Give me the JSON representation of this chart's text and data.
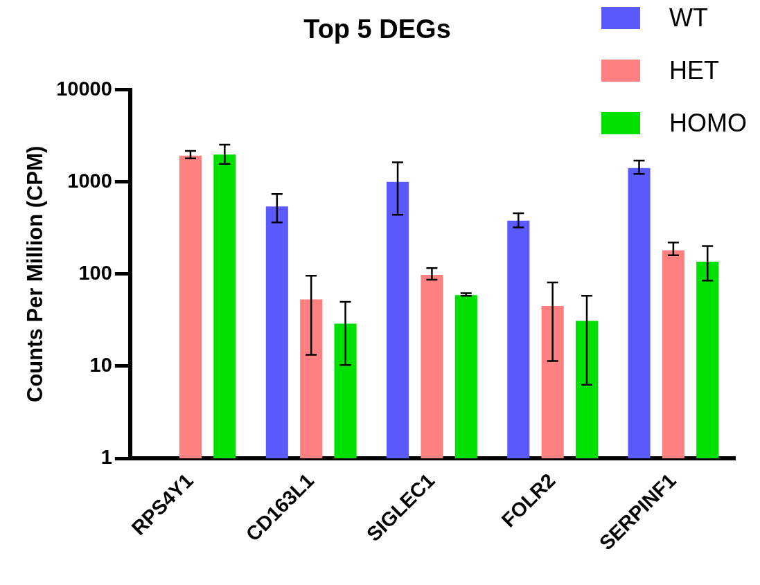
{
  "chart_data": {
    "type": "bar",
    "title": "Top 5 DEGs",
    "ylabel": "Counts Per Million (CPM)",
    "categories": [
      "RPS4Y1",
      "CD163L1",
      "SIGLEC1",
      "FOLR2",
      "SERPINF1"
    ],
    "series": [
      {
        "name": "WT",
        "color": "#5a5aff",
        "values": [
          null,
          540,
          1000,
          380,
          1410
        ],
        "errors": [
          null,
          [
            364,
            740
          ],
          [
            440,
            1630
          ],
          [
            320,
            458
          ],
          [
            1220,
            1700
          ]
        ]
      },
      {
        "name": "HET",
        "color": "#ff8080",
        "values": [
          1930,
          53,
          98,
          45,
          181
        ],
        "errors": [
          [
            1800,
            2170
          ],
          [
            13.3,
            96
          ],
          [
            87,
            116
          ],
          [
            11.4,
            81
          ],
          [
            160,
            220
          ]
        ]
      },
      {
        "name": "HOMO",
        "color": "#00e000",
        "values": [
          1980,
          29,
          59,
          31,
          136
        ],
        "errors": [
          [
            1570,
            2530
          ],
          [
            10.3,
            50
          ],
          [
            58,
            62
          ],
          [
            6.3,
            58
          ],
          [
            85,
            201
          ]
        ]
      }
    ],
    "log": true,
    "ylim": [
      1,
      10000
    ],
    "yticks": [
      1,
      10,
      100,
      1000,
      10000
    ],
    "grid": false,
    "legend": "top right"
  }
}
